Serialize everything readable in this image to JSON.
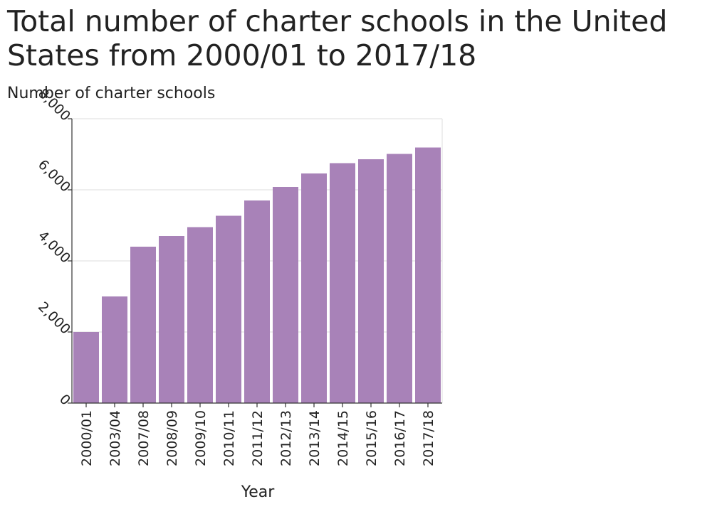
{
  "chart_data": {
    "type": "bar",
    "title": "Total number of charter schools in the United States from 2000/01 to 2017/18",
    "xlabel": "Year",
    "ylabel": "Number of charter schools",
    "categories": [
      "2000/01",
      "2003/04",
      "2007/08",
      "2008/09",
      "2009/10",
      "2010/11",
      "2011/12",
      "2012/13",
      "2013/14",
      "2014/15",
      "2015/16",
      "2016/17",
      "2017/18"
    ],
    "values": [
      2000,
      3000,
      4400,
      4700,
      4950,
      5270,
      5700,
      6080,
      6460,
      6750,
      6860,
      7010,
      7190
    ],
    "ylim": [
      0,
      8000
    ],
    "yticks": [
      0,
      2000,
      4000,
      6000,
      8000
    ],
    "ytick_labels": [
      "0",
      "2,000",
      "4,000",
      "6,000",
      "8,000"
    ],
    "grid": true,
    "bar_color": "#a882b8",
    "grid_color": "#dddddd",
    "axis_color": "#333333"
  }
}
